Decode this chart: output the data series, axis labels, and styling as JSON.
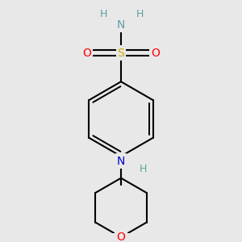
{
  "bg_color": "#e8e8e8",
  "atom_colors": {
    "C": "#000000",
    "H_nh2": "#5f9ea0",
    "N_nh2": "#5f9ea0",
    "N": "#0000cd",
    "H": "#5f9ea0",
    "O": "#ff0000",
    "S": "#ccaa00"
  },
  "bond_color": "#000000",
  "bond_width": 1.5,
  "figsize": [
    3.0,
    3.0
  ],
  "dpi": 100
}
